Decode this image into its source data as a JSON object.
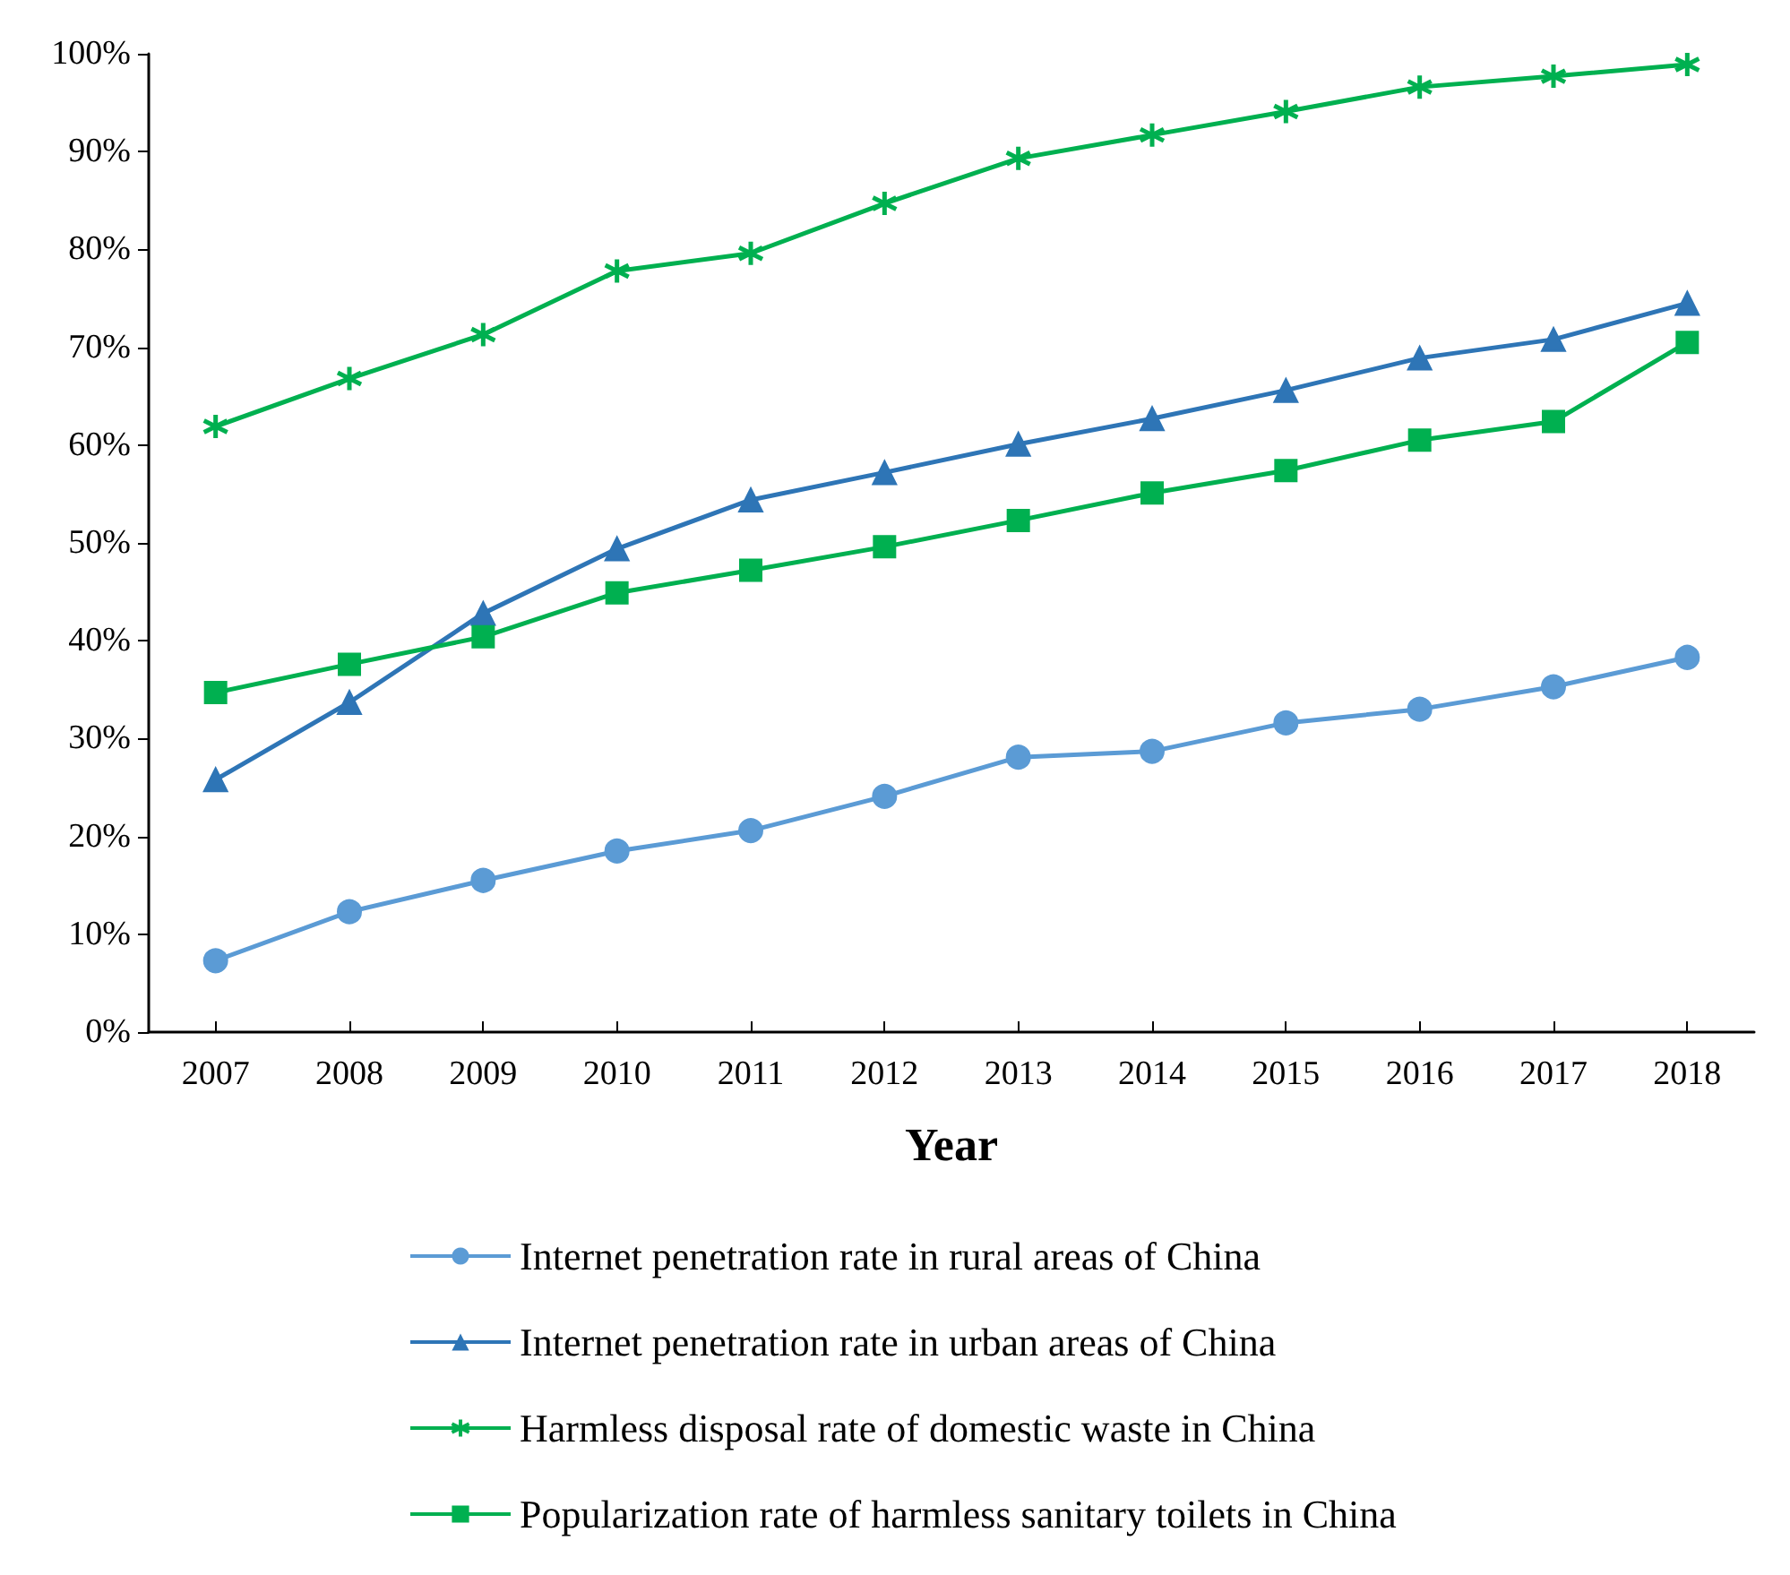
{
  "chart_data": {
    "type": "line",
    "xlabel": "Year",
    "categories": [
      "2007",
      "2008",
      "2009",
      "2010",
      "2011",
      "2012",
      "2013",
      "2014",
      "2015",
      "2016",
      "2017",
      "2018"
    ],
    "ylim": [
      0,
      100
    ],
    "yticks": [
      {
        "value": 0,
        "label": "0%"
      },
      {
        "value": 10,
        "label": "10%"
      },
      {
        "value": 20,
        "label": "20%"
      },
      {
        "value": 30,
        "label": "30%"
      },
      {
        "value": 40,
        "label": "40%"
      },
      {
        "value": 50,
        "label": "50%"
      },
      {
        "value": 60,
        "label": "60%"
      },
      {
        "value": 70,
        "label": "70%"
      },
      {
        "value": 80,
        "label": "80%"
      },
      {
        "value": 90,
        "label": "90%"
      },
      {
        "value": 100,
        "label": "100%"
      }
    ],
    "grid": false,
    "legend": "bottom",
    "line_style": "solid",
    "series": [
      {
        "name": "Internet penetration rate in rural areas of China",
        "color": "#5b9bd5",
        "marker": "circle",
        "values": [
          7.3,
          12.3,
          15.5,
          18.5,
          20.6,
          24.1,
          28.1,
          28.7,
          31.6,
          33.0,
          35.3,
          38.3
        ]
      },
      {
        "name": "Internet penetration rate in urban areas of China",
        "color": "#2e75b6",
        "marker": "triangle",
        "values": [
          25.8,
          33.7,
          42.8,
          49.4,
          54.4,
          57.2,
          60.1,
          62.7,
          65.6,
          68.9,
          70.8,
          74.5
        ]
      },
      {
        "name": "Harmless disposal rate of domestic waste in China",
        "color": "#00b050",
        "marker": "cross",
        "values": [
          61.9,
          66.8,
          71.3,
          77.8,
          79.6,
          84.7,
          89.3,
          91.7,
          94.1,
          96.6,
          97.7,
          98.9
        ]
      },
      {
        "name": "Popularization rate of harmless sanitary toilets in China",
        "color": "#00b050",
        "marker": "square",
        "values": [
          34.7,
          37.6,
          40.4,
          44.9,
          47.2,
          49.6,
          52.3,
          55.1,
          57.4,
          60.5,
          62.4,
          70.5
        ]
      }
    ]
  }
}
